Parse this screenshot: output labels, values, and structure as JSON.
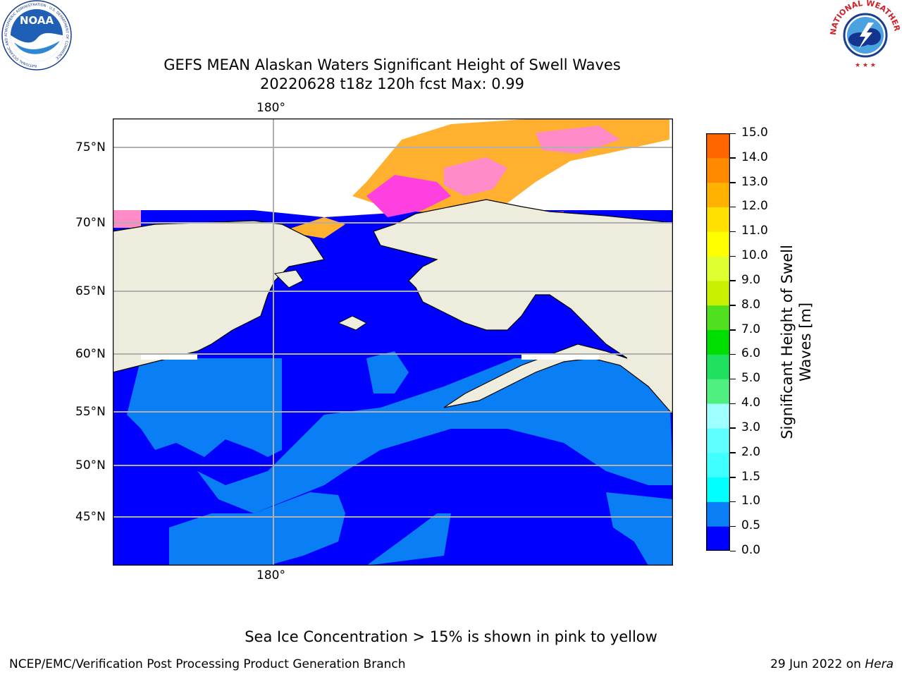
{
  "header": {
    "title_line1": "GEFS MEAN Alaskan Waters Significant Height of Swell Waves",
    "title_line2": "20220628 t18z 120h fcst   Max: 0.99"
  },
  "logos": {
    "left": "NOAA",
    "left_ring": "NATIONAL OCEANIC AND ATMOSPHERIC ADMINISTRATION · U.S. DEPARTMENT OF COMMERCE",
    "right_ring": "NATIONAL WEATHER SERVICE"
  },
  "map": {
    "lon_label_top": "180°",
    "lon_label_bottom": "180°",
    "lat_labels": [
      "75°N",
      "70°N",
      "65°N",
      "60°N",
      "55°N",
      "50°N",
      "45°N"
    ],
    "colors": {
      "land": "#eeecdc",
      "band_0_0.5": "#0000ff",
      "band_0.5_1.0": "#0a7ff5",
      "ice_pink": "#ff40e0",
      "ice_orange": "#ffb02e"
    }
  },
  "colorbar": {
    "title_line1": "Significant Height of Swell",
    "title_line2": "Waves [m]",
    "ticks": [
      "15.0",
      "14.0",
      "13.0",
      "12.0",
      "11.0",
      "10.0",
      "9.0",
      "8.0",
      "7.0",
      "6.0",
      "5.0",
      "4.0",
      "3.0",
      "2.0",
      "1.5",
      "1.0",
      "0.5",
      "0.0"
    ],
    "colors_bottom_to_top": [
      "#0000ff",
      "#0a7ff5",
      "#00ffff",
      "#40ffff",
      "#60ffff",
      "#a0ffff",
      "#50f080",
      "#20e060",
      "#00dd00",
      "#50e020",
      "#c8f000",
      "#e0ff30",
      "#ffff00",
      "#ffe000",
      "#ffb300",
      "#ff8a00",
      "#ff6600",
      "#ff3300",
      "#ff0000"
    ]
  },
  "footer": {
    "note": "Sea Ice Concentration > 15% is shown in pink to yellow",
    "credit": "NCEP/EMC/Verification Post Processing Product Generation Branch",
    "date": "29 Jun 2022 on",
    "host": "Hera"
  }
}
